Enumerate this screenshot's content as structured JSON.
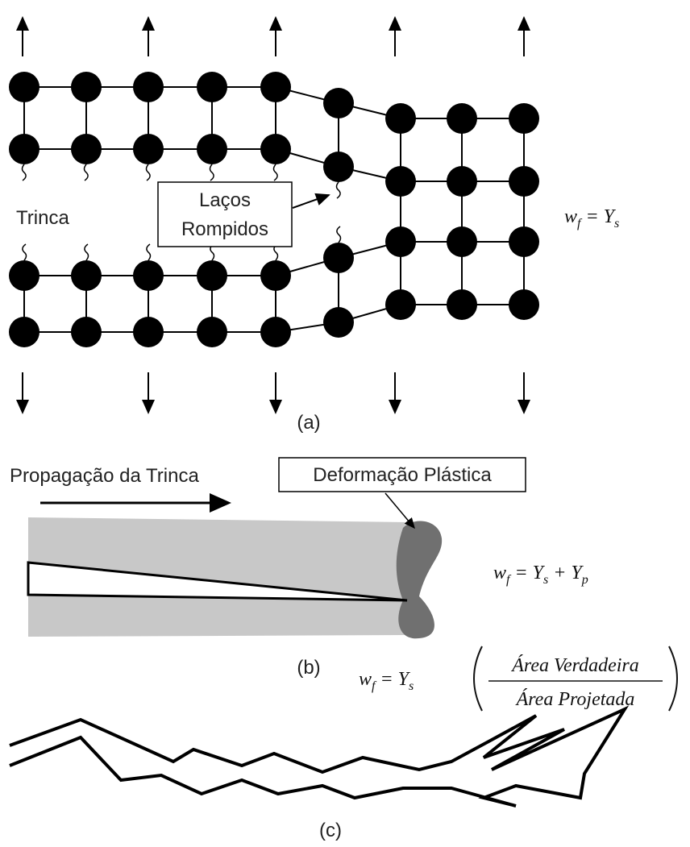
{
  "panel_a": {
    "crack_label": "Trinca",
    "bonds_label": [
      "Laços",
      "Rompidos"
    ],
    "equation": {
      "w": "w",
      "w_sub": "f",
      "rhs": "= Y",
      "rhs_sub": "s"
    },
    "caption": "(a)"
  },
  "panel_b": {
    "propagation_label": "Propagação da Trinca",
    "deformation_label": "Deformação Plástica",
    "equation": {
      "w": "w",
      "w_sub": "f",
      "rhs": "= Y",
      "rhs_sub": "s",
      "plus": "+ Y",
      "plus_sub": "p"
    },
    "caption": "(b)"
  },
  "panel_c": {
    "equation": {
      "w": "w",
      "w_sub": "f",
      "rhs": "= Y",
      "rhs_sub": "s",
      "numerator": "Área Verdadeira",
      "denominator": "Área Projetada"
    },
    "caption": "(c)"
  }
}
